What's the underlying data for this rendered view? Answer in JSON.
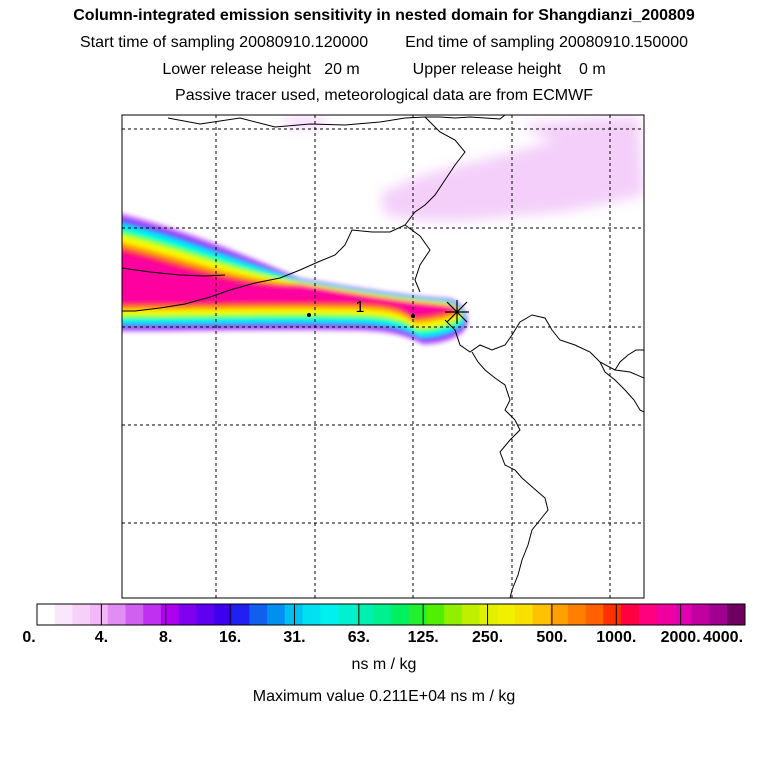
{
  "header": {
    "title": "Column-integrated emission sensitivity in nested domain for Shangdianzi_200809",
    "start_label": "Start time of sampling 20080910.120000",
    "end_label": "End time of sampling 20080910.150000",
    "lower_label": "Lower release height   20 m",
    "upper_label": "Upper release height    0 m",
    "note": "Passive tracer used, meteorological data are from ECMWF"
  },
  "map": {
    "release_marker_label": "1",
    "plume_colors": [
      "#ff00a0",
      "#ff1060",
      "#ff7000",
      "#ffc000",
      "#ffff00",
      "#c0ff00",
      "#00ff80",
      "#00ffff",
      "#00a0ff",
      "#8000ff",
      "#d080ff"
    ],
    "background_haze_color": "#f0c0f8"
  },
  "colorbar": {
    "colors": [
      "#ffffff",
      "#fbe7fb",
      "#f6d0f8",
      "#f0b8f4",
      "#e08ef2",
      "#d060f0",
      "#c030f0",
      "#b000f0",
      "#8000f0",
      "#6000f0",
      "#4000f0",
      "#2020f0",
      "#1060f0",
      "#0090f0",
      "#00c0f0",
      "#00e0f0",
      "#00f0f0",
      "#00f0d0",
      "#00f0b0",
      "#00f090",
      "#00f060",
      "#20f030",
      "#50f000",
      "#90f000",
      "#c0f000",
      "#e0f000",
      "#f0f000",
      "#f8e000",
      "#ffc000",
      "#ffa000",
      "#ff8000",
      "#ff6000",
      "#ff3000",
      "#ff0040",
      "#ff0080",
      "#f000a0",
      "#e000b0",
      "#c000a0",
      "#a00090",
      "#700060"
    ],
    "tick_labels": [
      "0.",
      "4.",
      "8.",
      "16.",
      "31.",
      "63.",
      "125.",
      "250.",
      "500.",
      "1000.",
      "2000.",
      "4000."
    ],
    "units": "ns m / kg",
    "max_label": "Maximum value  0.211E+04 ns m / kg"
  }
}
